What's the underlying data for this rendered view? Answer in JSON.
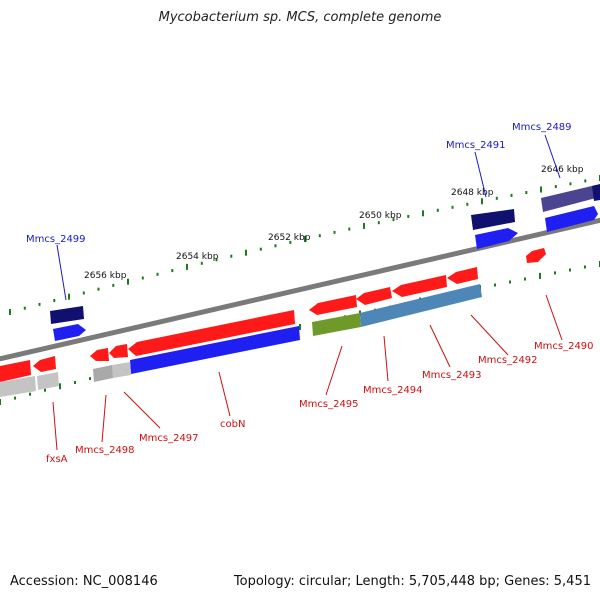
{
  "title": "Mycobacterium sp. MCS, complete genome",
  "footer": {
    "accession": "Accession: NC_008146",
    "summary": "Topology: circular; Length: 5,705,448 bp; Genes: 5,451"
  },
  "colors": {
    "backbone": "#888888",
    "tick": "#1e7a1e",
    "red_gene": "#ff1a1a",
    "blue_gene": "#1f1ff2",
    "navy_gene": "#10106e",
    "gray_gene": "#c4c4c4",
    "olive_gene": "#6f9a2a",
    "steel_gene": "#4f86b8",
    "purple_gene": "#4b4490",
    "blue_label": "#1a1acc",
    "red_label": "#cc1111"
  },
  "ruler_labels": [
    "2646 kbp",
    "2648 kbp",
    "2650 kbp",
    "2652 kbp",
    "2654 kbp",
    "2656 kbp"
  ],
  "gene_labels": {
    "top": [
      "Mmcs_2489",
      "Mmcs_2491",
      "Mmcs_2499"
    ],
    "bottom": [
      "Mmcs_2490",
      "Mmcs_2492",
      "Mmcs_2493",
      "Mmcs_2494",
      "Mmcs_2495",
      "cobN",
      "Mmcs_2497",
      "Mmcs_2498",
      "fxsA"
    ]
  }
}
